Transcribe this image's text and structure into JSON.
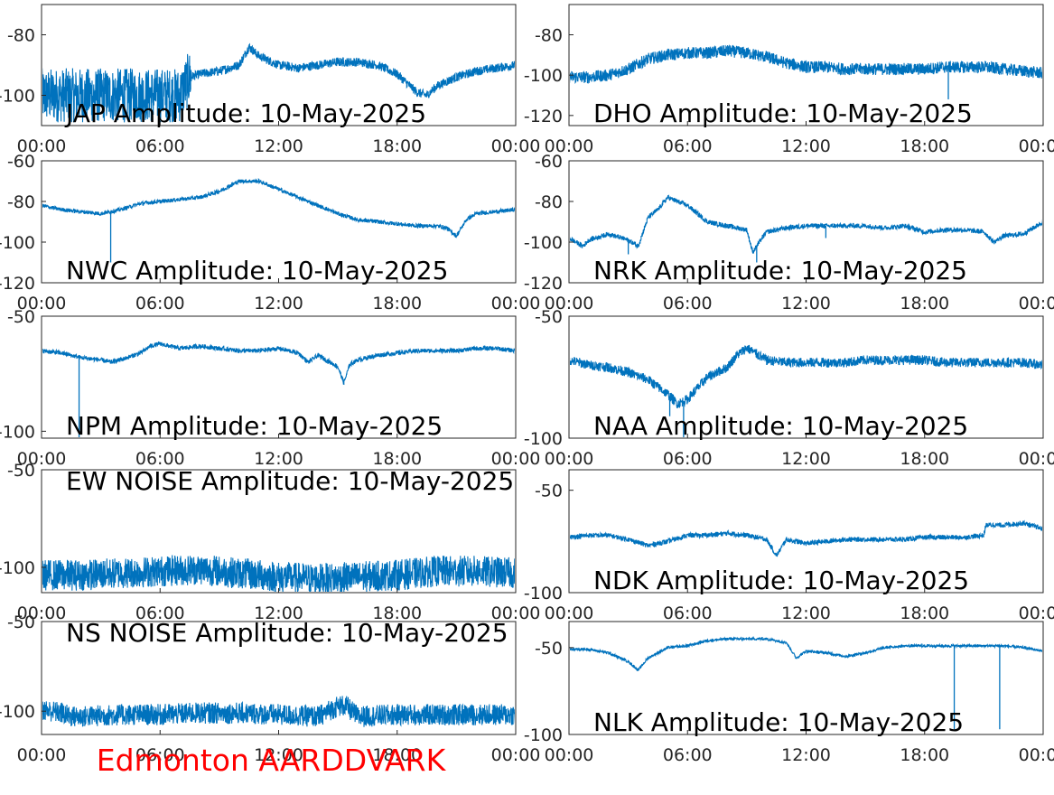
{
  "figure": {
    "footer": "Edmonton AARDDVARK",
    "footer_color": "#ff0000",
    "line_color": "#0072bd",
    "background": "#ffffff"
  },
  "chart_data": [
    {
      "type": "line",
      "title": "JAP Amplitude: 10-May-2025",
      "x_ticks": [
        "00:00",
        "06:00",
        "12:00",
        "18:00",
        "00:00"
      ],
      "xlim": [
        0,
        24
      ],
      "y_ticks": [
        "-80",
        "-100"
      ],
      "ylim": [
        -110,
        -70
      ],
      "x": [
        0,
        1,
        2,
        3,
        4,
        5,
        6,
        7,
        7.5,
        8,
        9,
        10,
        10.5,
        11,
        12,
        13,
        14,
        15,
        16,
        17,
        18,
        19,
        19.5,
        20,
        21,
        22,
        23,
        24
      ],
      "values": [
        -100,
        -100,
        -100,
        -100,
        -100,
        -100,
        -100,
        -100,
        -94,
        -93,
        -92,
        -90,
        -84,
        -87,
        -90,
        -91,
        -90,
        -89,
        -89,
        -90,
        -93,
        -99,
        -100,
        -97,
        -94,
        -92,
        -91,
        -90
      ],
      "noise": 9,
      "noise_until": 7.6,
      "noise_after": 1.5
    },
    {
      "type": "line",
      "title": "DHO Amplitude: 10-May-2025",
      "x_ticks": [
        "00:00",
        "06:00",
        "12:00",
        "18:00",
        "00:00"
      ],
      "xlim": [
        0,
        24
      ],
      "y_ticks": [
        "-80",
        "-100",
        "-120"
      ],
      "ylim": [
        -125,
        -65
      ],
      "x": [
        0,
        1,
        2,
        3,
        4,
        5,
        6,
        7,
        8,
        9,
        10,
        11,
        12,
        13,
        14,
        15,
        16,
        17,
        18,
        19,
        20,
        21,
        22,
        23,
        24
      ],
      "values": [
        -101,
        -101,
        -100,
        -97,
        -92,
        -90,
        -89,
        -89,
        -88,
        -89,
        -91,
        -94,
        -96,
        -96,
        -97,
        -97,
        -97,
        -97,
        -97,
        -96,
        -96,
        -96,
        -97,
        -98,
        -99
      ],
      "noise": 3,
      "spikes": [
        {
          "x": 19.2,
          "value": -112
        }
      ]
    },
    {
      "type": "line",
      "title": "NWC Amplitude: 10-May-2025",
      "x_ticks": [
        "00:00",
        "06:00",
        "12:00",
        "18:00",
        "00:00"
      ],
      "xlim": [
        0,
        24
      ],
      "y_ticks": [
        "-60",
        "-80",
        "-100",
        "-120"
      ],
      "ylim": [
        -120,
        -60
      ],
      "x": [
        0,
        1,
        2,
        3,
        4,
        5,
        6,
        7,
        8,
        9,
        10,
        11,
        12,
        13,
        14,
        15,
        16,
        17,
        18,
        19,
        20,
        20.5,
        21,
        21.5,
        22,
        23,
        24
      ],
      "values": [
        -82,
        -84,
        -85,
        -86,
        -84,
        -81,
        -80,
        -79,
        -78,
        -75,
        -70,
        -70,
        -74,
        -78,
        -82,
        -86,
        -89,
        -90,
        -91,
        -92,
        -92,
        -93,
        -97,
        -89,
        -86,
        -85,
        -84
      ],
      "noise": 1,
      "spikes": [
        {
          "x": 3.5,
          "value": -110
        }
      ]
    },
    {
      "type": "line",
      "title": "NRK Amplitude: 10-May-2025",
      "x_ticks": [
        "00:00",
        "06:00",
        "12:00",
        "18:00",
        "00:00"
      ],
      "xlim": [
        0,
        24
      ],
      "y_ticks": [
        "-60",
        "-80",
        "-100",
        "-120"
      ],
      "ylim": [
        -120,
        -60
      ],
      "x": [
        0,
        0.7,
        1,
        2,
        3,
        3.5,
        4,
        4.5,
        5,
        6,
        7,
        8,
        9,
        9.3,
        9.7,
        10,
        11,
        12,
        13,
        14,
        15,
        16,
        17,
        18,
        19,
        20,
        21,
        21.5,
        22,
        23,
        24
      ],
      "values": [
        -98,
        -102,
        -99,
        -96,
        -99,
        -102,
        -88,
        -84,
        -78,
        -82,
        -90,
        -92,
        -94,
        -105,
        -99,
        -95,
        -93,
        -92,
        -92,
        -92,
        -92,
        -93,
        -92,
        -95,
        -94,
        -94,
        -95,
        -100,
        -97,
        -96,
        -90
      ],
      "noise": 1.2,
      "spikes": [
        {
          "x": 3.0,
          "value": -106
        },
        {
          "x": 9.5,
          "value": -110
        },
        {
          "x": 13.0,
          "value": -98
        }
      ]
    },
    {
      "type": "line",
      "title": "NPM Amplitude: 10-May-2025",
      "x_ticks": [
        "00:00",
        "06:00",
        "12:00",
        "18:00",
        "00:00"
      ],
      "xlim": [
        0,
        24
      ],
      "y_ticks": [
        "-50",
        "-100"
      ],
      "ylim": [
        -103,
        -50
      ],
      "x": [
        0,
        1,
        2,
        3,
        3.5,
        4,
        5,
        5.5,
        6,
        7,
        8,
        9,
        10,
        11,
        12,
        13,
        13.5,
        14,
        15,
        15.3,
        15.6,
        16,
        17,
        18,
        19,
        20,
        21,
        22,
        23,
        24
      ],
      "values": [
        -65,
        -66,
        -68,
        -69,
        -70,
        -69,
        -66,
        -63,
        -62,
        -64,
        -63,
        -64,
        -65,
        -65,
        -64,
        -66,
        -70,
        -67,
        -72,
        -79,
        -71,
        -69,
        -67,
        -66,
        -65,
        -65,
        -65,
        -64,
        -64,
        -65
      ],
      "noise": 1,
      "spikes": [
        {
          "x": 1.9,
          "value": -103
        }
      ]
    },
    {
      "type": "line",
      "title": "NAA Amplitude: 10-May-2025",
      "x_ticks": [
        "00:00",
        "06:00",
        "12:00",
        "18:00",
        "00:00"
      ],
      "xlim": [
        0,
        24
      ],
      "y_ticks": [
        "-50",
        "-100"
      ],
      "ylim": [
        -100,
        -50
      ],
      "x": [
        0,
        1,
        2,
        3,
        4,
        5,
        5.5,
        6,
        7,
        8,
        8.5,
        9,
        10,
        11,
        12,
        13,
        14,
        15,
        16,
        17,
        18,
        19,
        20,
        21,
        22,
        23,
        24
      ],
      "values": [
        -68,
        -70,
        -71,
        -73,
        -76,
        -82,
        -86,
        -84,
        -75,
        -71,
        -66,
        -63,
        -68,
        -69,
        -69,
        -69,
        -69,
        -68,
        -68,
        -68,
        -68,
        -69,
        -69,
        -69,
        -69,
        -69,
        -70
      ],
      "noise": 2,
      "spikes": [
        {
          "x": 5.8,
          "value": -100
        },
        {
          "x": 5.1,
          "value": -91
        }
      ]
    },
    {
      "type": "line",
      "title": "EW NOISE Amplitude: 10-May-2025",
      "x_ticks": [
        "00:00",
        "06:00",
        "12:00",
        "18:00",
        "00:00"
      ],
      "xlim": [
        0,
        24
      ],
      "y_ticks": [
        "-50",
        "-100"
      ],
      "ylim": [
        -113,
        -50
      ],
      "x": [
        0,
        2,
        4,
        6,
        8,
        10,
        12,
        14,
        16,
        18,
        20,
        22,
        24
      ],
      "values": [
        -104,
        -104,
        -103,
        -102,
        -101,
        -103,
        -105,
        -106,
        -105,
        -104,
        -102,
        -102,
        -103
      ],
      "noise": 8
    },
    {
      "type": "line",
      "title": "NDK Amplitude: 10-May-2025",
      "x_ticks": [
        "00:00",
        "06:00",
        "12:00",
        "18:00",
        "00:00"
      ],
      "xlim": [
        0,
        24
      ],
      "y_ticks": [
        "-50",
        "-100"
      ],
      "ylim": [
        -100,
        -40
      ],
      "x": [
        0,
        1,
        2,
        3,
        4,
        5,
        6,
        7,
        8,
        9,
        10,
        10.5,
        11,
        12,
        13,
        14,
        15,
        16,
        17,
        18,
        19,
        20,
        21,
        21.1,
        22,
        23,
        24
      ],
      "values": [
        -73,
        -72,
        -72,
        -74,
        -77,
        -75,
        -72,
        -72,
        -71,
        -72,
        -74,
        -82,
        -74,
        -76,
        -75,
        -74,
        -74,
        -74,
        -74,
        -73,
        -73,
        -73,
        -72,
        -67,
        -67,
        -66,
        -69
      ],
      "noise": 1.2
    },
    {
      "type": "line",
      "title": "NS NOISE Amplitude: 10-May-2025",
      "x_ticks": [
        "00:00",
        "06:00",
        "12:00",
        "18:00",
        "00:00"
      ],
      "xlim": [
        0,
        24
      ],
      "y_ticks": [
        "-50",
        "-100"
      ],
      "ylim": [
        -113,
        -50
      ],
      "x": [
        0,
        1,
        1.5,
        2,
        4,
        6,
        8,
        10,
        12,
        14,
        14.5,
        15,
        15.4,
        16,
        18,
        20,
        22,
        24
      ],
      "values": [
        -99,
        -101,
        -103,
        -103,
        -102,
        -102,
        -101,
        -101,
        -102,
        -103,
        -100,
        -97,
        -97,
        -103,
        -102,
        -102,
        -102,
        -102
      ],
      "noise": 6
    },
    {
      "type": "line",
      "title": "NLK Amplitude: 10-May-2025",
      "x_ticks": [
        "00:00",
        "06:00",
        "12:00",
        "18:00",
        "00:00"
      ],
      "xlim": [
        0,
        24
      ],
      "y_ticks": [
        "-50",
        "-100"
      ],
      "ylim": [
        -100,
        -35
      ],
      "x": [
        0,
        1,
        2,
        3,
        3.5,
        4,
        5,
        6,
        7,
        8,
        9,
        10,
        11,
        11.5,
        12,
        13,
        14,
        15,
        16,
        17,
        18,
        19,
        20,
        21,
        22,
        23,
        24
      ],
      "values": [
        -51,
        -51,
        -53,
        -58,
        -63,
        -56,
        -50,
        -49,
        -46,
        -45,
        -45,
        -45,
        -47,
        -56,
        -52,
        -53,
        -55,
        -53,
        -50,
        -49,
        -49,
        -49,
        -49,
        -49,
        -49,
        -50,
        -52
      ],
      "noise": 0.8,
      "spikes": [
        {
          "x": 19.5,
          "value": -97
        },
        {
          "x": 21.8,
          "value": -97
        }
      ]
    }
  ]
}
